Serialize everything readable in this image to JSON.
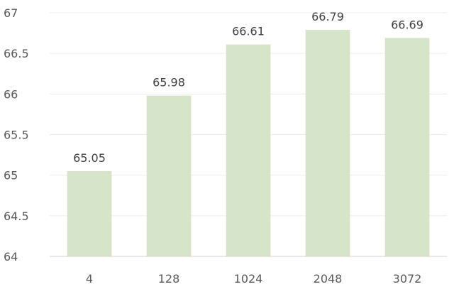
{
  "chart_data": {
    "type": "bar",
    "categories": [
      "4",
      "128",
      "1024",
      "2048",
      "3072"
    ],
    "values": [
      65.05,
      65.98,
      66.61,
      66.79,
      66.69
    ],
    "data_labels": [
      "65.05",
      "65.98",
      "66.61",
      "66.79",
      "66.69"
    ],
    "y_ticks": [
      "64",
      "64.5",
      "65",
      "65.5",
      "66",
      "66.5",
      "67"
    ],
    "ylim": [
      64,
      67
    ],
    "grid": true,
    "legend": "none",
    "title": "",
    "xlabel": "",
    "ylabel": "",
    "colors": {
      "bar": "#d6e5c9",
      "grid": "#ececec",
      "axis": "#d0d0d0"
    }
  }
}
